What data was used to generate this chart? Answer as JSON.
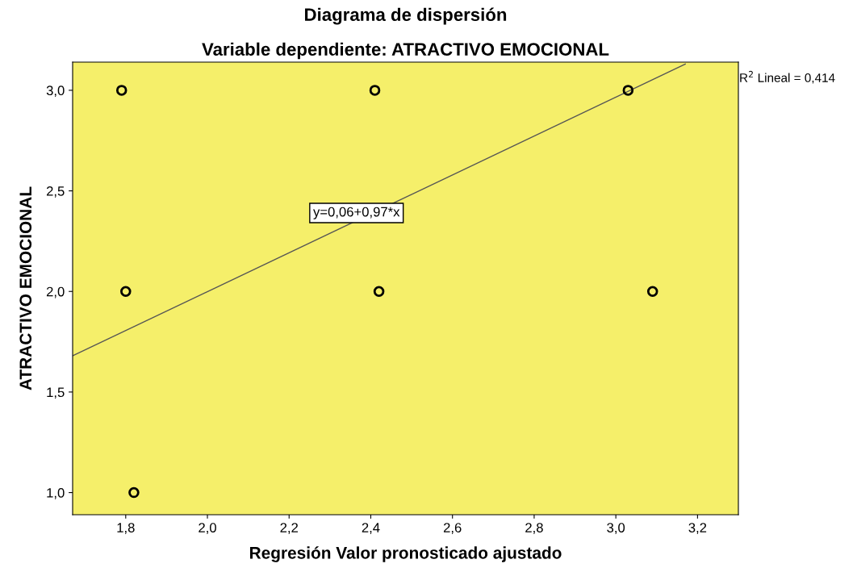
{
  "chart_data": {
    "type": "scatter",
    "title": "Diagrama de dispersión",
    "subtitle": "Variable dependiente: ATRACTIVO EMOCIONAL",
    "xlabel": "Regresión Valor pronosticado ajustado",
    "ylabel": "ATRACTIVO EMOCIONAL",
    "series": [
      {
        "color": "#000000",
        "marker": "circle",
        "x": [
          1.79,
          2.41,
          3.03,
          1.8,
          2.42,
          3.09,
          1.82
        ],
        "values": [
          3.0,
          3.0,
          3.0,
          2.0,
          2.0,
          2.0,
          1.0
        ]
      },
      {
        "type": "line",
        "color": "#555555",
        "x": [
          1.67,
          3.17
        ],
        "values": [
          1.68,
          3.13
        ]
      }
    ],
    "xlim": [
      1.67,
      3.3
    ],
    "ylim": [
      0.89,
      3.14
    ],
    "xticks": [
      {
        "value": 1.8,
        "label": "1,8"
      },
      {
        "value": 2.0,
        "label": "2,0"
      },
      {
        "value": 2.2,
        "label": "2,2"
      },
      {
        "value": 2.4,
        "label": "2,4"
      },
      {
        "value": 2.6,
        "label": "2,6"
      },
      {
        "value": 2.8,
        "label": "2,8"
      },
      {
        "value": 3.0,
        "label": "3,0"
      },
      {
        "value": 3.2,
        "label": "3,2"
      }
    ],
    "yticks": [
      {
        "value": 1.0,
        "label": "1,0"
      },
      {
        "value": 1.5,
        "label": "1,5"
      },
      {
        "value": 2.0,
        "label": "2,0"
      },
      {
        "value": 2.5,
        "label": "2,5"
      },
      {
        "value": 3.0,
        "label": "3,0"
      }
    ],
    "annotations": [
      "y=0,06+0,97*x",
      "R$^{2}$ Lineal = 0,414"
    ],
    "grid": false
  }
}
